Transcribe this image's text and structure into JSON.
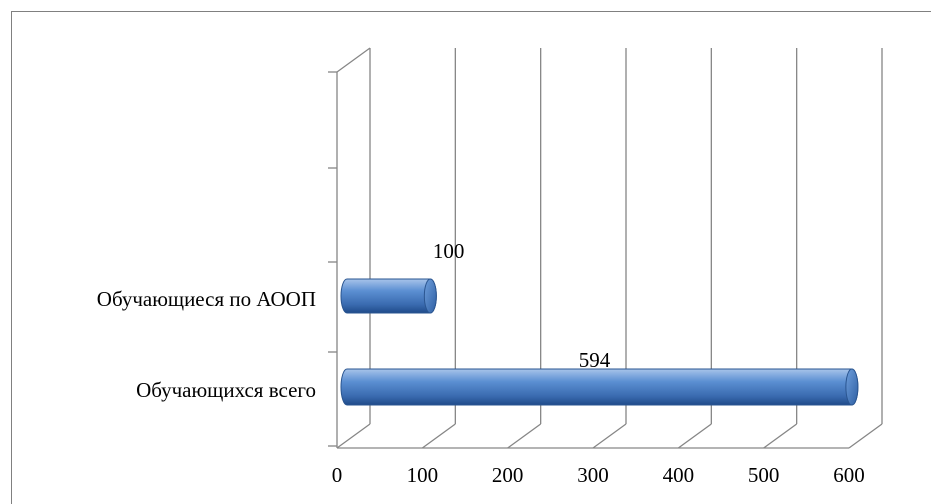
{
  "chart_data": {
    "type": "bar",
    "orientation": "horizontal",
    "style": "3d-cylinder",
    "title": "",
    "xlabel": "",
    "ylabel": "",
    "categories": [
      "Обучающиеся по АООП",
      "Обучающихся всего"
    ],
    "values": [
      100,
      594
    ],
    "data_labels": [
      "100",
      "594"
    ],
    "xlim": [
      0,
      600
    ],
    "x_ticks": [
      0,
      100,
      200,
      300,
      400,
      500,
      600
    ],
    "x_tick_labels": [
      "0",
      "100",
      "200",
      "300",
      "400",
      "500",
      "600"
    ],
    "grid": true,
    "legend": "none",
    "bar_color": "#4a7ebb",
    "grid_color": "#868686"
  }
}
